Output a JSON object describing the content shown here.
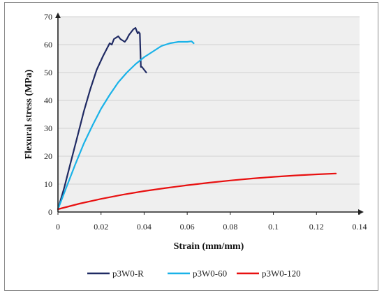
{
  "chart_data": {
    "type": "line",
    "xlabel": "Strain (mm/mm)",
    "ylabel": "Flexural stress (MPa)",
    "xlim": [
      0,
      0.14
    ],
    "ylim": [
      0,
      70
    ],
    "xticks": [
      0,
      0.02,
      0.04,
      0.06,
      0.08,
      0.1,
      0.12,
      0.14
    ],
    "xtick_labels": [
      "0",
      "0.02",
      "0.04",
      "0.06",
      "0.08",
      "0.1",
      "0.12",
      "0.14"
    ],
    "yticks": [
      0,
      10,
      20,
      30,
      40,
      50,
      60,
      70
    ],
    "ytick_labels": [
      "0",
      "10",
      "20",
      "30",
      "40",
      "50",
      "60",
      "70"
    ],
    "grid": "horizontal",
    "legend_position": "bottom",
    "series": [
      {
        "name": "p3W0-R",
        "color": "#1f2a63",
        "x": [
          0,
          0.003,
          0.006,
          0.009,
          0.012,
          0.015,
          0.018,
          0.021,
          0.023,
          0.024,
          0.025,
          0.026,
          0.027,
          0.028,
          0.029,
          0.03,
          0.031,
          0.032,
          0.033,
          0.034,
          0.035,
          0.036,
          0.0365,
          0.037,
          0.0375,
          0.038,
          0.0385,
          0.039,
          0.0395,
          0.04,
          0.0405,
          0.041
        ],
        "y": [
          1,
          9,
          18,
          27,
          36,
          44,
          51,
          56,
          59,
          60.5,
          60,
          62,
          62.5,
          63,
          62,
          61.5,
          61,
          62,
          63.5,
          64.5,
          65.5,
          66,
          65,
          64,
          64.5,
          64,
          52,
          52,
          51.5,
          51,
          50.5,
          50
        ]
      },
      {
        "name": "p3W0-60",
        "color": "#1ab2e8",
        "x": [
          0,
          0.004,
          0.008,
          0.012,
          0.016,
          0.02,
          0.024,
          0.028,
          0.032,
          0.036,
          0.04,
          0.044,
          0.048,
          0.052,
          0.056,
          0.06,
          0.062,
          0.063
        ],
        "y": [
          1,
          9,
          17,
          24.5,
          31,
          37,
          42,
          46.5,
          50,
          53,
          55.5,
          57.5,
          59.5,
          60.5,
          61,
          61,
          61.2,
          60.5
        ]
      },
      {
        "name": "p3W0-120",
        "color": "#e81010",
        "x": [
          0,
          0.01,
          0.02,
          0.03,
          0.04,
          0.05,
          0.06,
          0.07,
          0.08,
          0.09,
          0.1,
          0.11,
          0.12,
          0.129
        ],
        "y": [
          1,
          3,
          4.7,
          6.2,
          7.5,
          8.6,
          9.6,
          10.5,
          11.3,
          12,
          12.6,
          13.1,
          13.5,
          13.8
        ]
      }
    ]
  }
}
